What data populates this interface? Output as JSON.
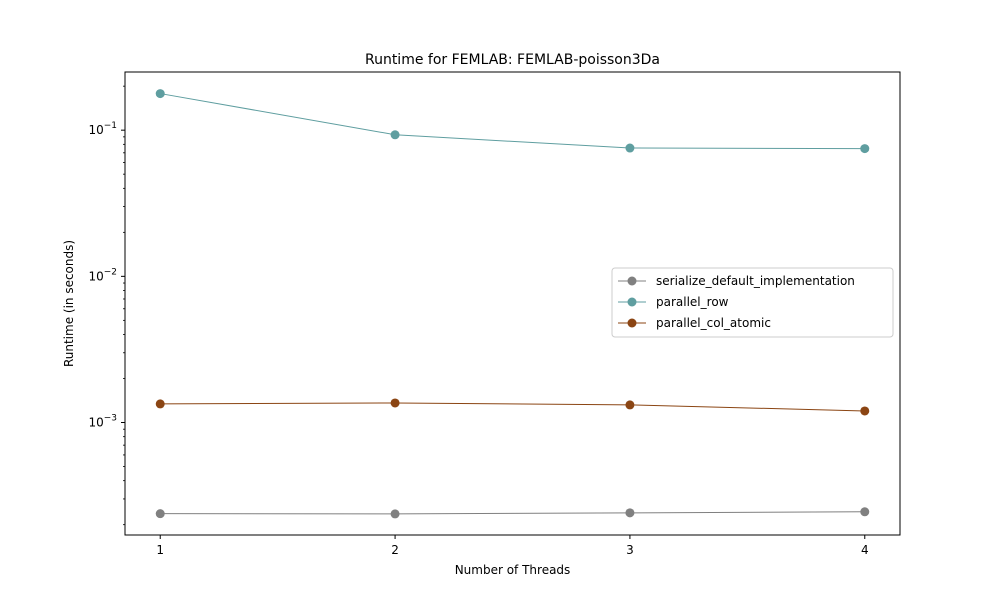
{
  "chart_data": {
    "type": "line",
    "title": "Runtime for FEMLAB: FEMLAB-poisson3Da",
    "xlabel": "Number of Threads",
    "ylabel": "Runtime (in seconds)",
    "x": [
      1,
      2,
      3,
      4
    ],
    "x_ticks": [
      "1",
      "2",
      "3",
      "4"
    ],
    "y_scale": "log",
    "ylim": [
      0.00017,
      0.25
    ],
    "y_ticks": [
      {
        "value": 0.1,
        "base": "10",
        "exp": "−1"
      },
      {
        "value": 0.01,
        "base": "10",
        "exp": "−2"
      },
      {
        "value": 0.001,
        "base": "10",
        "exp": "−3"
      }
    ],
    "grid": false,
    "legend_position": "center-right",
    "series": [
      {
        "name": "serialize_default_implementation",
        "color": "#808080",
        "values": [
          0.000238,
          0.000237,
          0.000241,
          0.000245
        ]
      },
      {
        "name": "parallel_row",
        "color": "#5f9ea0",
        "values": [
          0.178,
          0.093,
          0.0755,
          0.0748
        ]
      },
      {
        "name": "parallel_col_atomic",
        "color": "#8b4513",
        "values": [
          0.00134,
          0.00136,
          0.00132,
          0.0012
        ]
      }
    ]
  }
}
